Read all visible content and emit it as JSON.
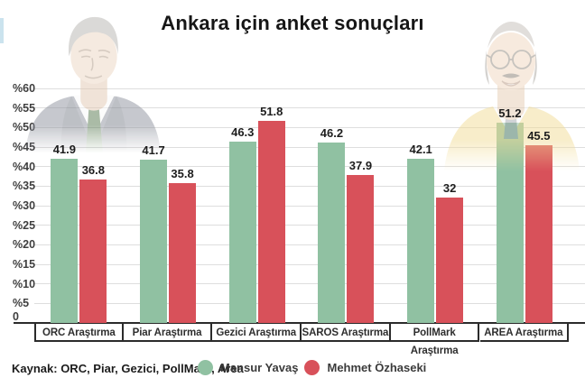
{
  "title": "Ankara için anket sonuçları",
  "source_label": "Kaynak: ORC, Piar, Gezici, PollMark, Area",
  "legend": [
    {
      "label": "Mansur Yavaş",
      "color": "#90c1a2"
    },
    {
      "label": "Mehmet Özhaseki",
      "color": "#d8515a"
    }
  ],
  "chart_data": {
    "type": "bar",
    "title": "Ankara için anket sonuçları",
    "categories": [
      "ORC Araştırma",
      "Piar Araştırma",
      "Gezici Araştırma",
      "SAROS Araştırma",
      "PollMark Araştırma",
      "AREA Araştırma"
    ],
    "series": [
      {
        "name": "Mansur Yavaş",
        "color": "#90c1a2",
        "values": [
          41.9,
          41.7,
          46.3,
          46.2,
          42.1,
          51.2
        ]
      },
      {
        "name": "Mehmet Özhaseki",
        "color": "#d8515a",
        "values": [
          36.8,
          35.8,
          51.8,
          37.9,
          32,
          45.5
        ]
      }
    ],
    "y_ticks": [
      "%60",
      "%55",
      "%50",
      "%45",
      "%40",
      "%35",
      "%30",
      "%25",
      "%20",
      "%15",
      "%10",
      "%5",
      "0"
    ],
    "y_tick_values": [
      60,
      55,
      50,
      45,
      40,
      35,
      30,
      25,
      20,
      15,
      10,
      5,
      0
    ],
    "ylim": [
      0,
      60
    ],
    "xlabel": "",
    "ylabel": "",
    "grid": true,
    "legend_position": "bottom"
  },
  "colors": {
    "axis": "#2b2b2b",
    "gridline": "#dedede",
    "accent_strip": "#cbe3ee"
  }
}
